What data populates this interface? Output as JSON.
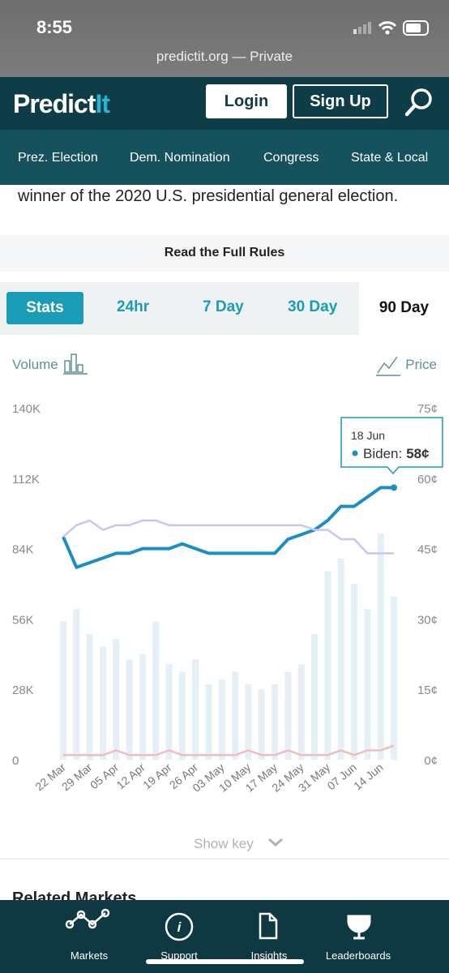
{
  "status_bar": {
    "time": "8:55",
    "url": "predictit.org — Private"
  },
  "header": {
    "logo_main": "Predict",
    "logo_accent": "It",
    "login": "Login",
    "signup": "Sign Up"
  },
  "nav": [
    "Prez. Election",
    "Dem. Nomination",
    "Congress",
    "State & Local"
  ],
  "content": {
    "rules_text": "winner of the 2020 U.S. presidential general election.",
    "rules_link": "Read the Full Rules"
  },
  "tabs": [
    "Stats",
    "24hr",
    "7 Day",
    "30 Day",
    "90 Day"
  ],
  "chart_data": {
    "type": "line",
    "left_label": "Volume",
    "right_label": "Price",
    "categories": [
      "22 Mar",
      null,
      "29 Mar",
      null,
      "05 Apr",
      null,
      "12 Apr",
      null,
      "19 Apr",
      null,
      "26 Apr",
      null,
      "03 May",
      null,
      "10 May",
      null,
      "17 May",
      null,
      "24 May",
      null,
      "31 May",
      null,
      "07 Jun",
      null,
      "14 Jun",
      null
    ],
    "ylim": [
      0,
      140000
    ],
    "yticks": [
      0,
      {
        "value": 28000,
        "label": "28K"
      },
      {
        "value": 56000,
        "label": "56K"
      },
      {
        "value": 84000,
        "label": "84K"
      },
      {
        "value": 112000,
        "label": "112K"
      },
      {
        "value": 140000,
        "label": "140K"
      }
    ],
    "y2lim": [
      0,
      75
    ],
    "y2ticks": [
      {
        "value": 0,
        "label": "0¢"
      },
      {
        "value": 15,
        "label": "15¢"
      },
      {
        "value": 30,
        "label": "30¢"
      },
      {
        "value": 45,
        "label": "45¢"
      },
      {
        "value": 60,
        "label": "60¢"
      },
      {
        "value": 75,
        "label": "75¢"
      }
    ],
    "series": [
      {
        "type": "bar",
        "color": "#e4f0f6",
        "values": [
          55000,
          60000,
          50000,
          45000,
          48000,
          40000,
          42000,
          55000,
          38000,
          35000,
          40000,
          30000,
          32000,
          35000,
          30000,
          28000,
          30000,
          35000,
          38000,
          50000,
          75000,
          80000,
          70000,
          60000,
          90000,
          65000
        ]
      },
      {
        "name": "Biden",
        "color": "#1b8ec4",
        "axis": "y2",
        "values": [
          47.5,
          41,
          42,
          43,
          44,
          44,
          45,
          45,
          45,
          46,
          45,
          44,
          44,
          44,
          44,
          44,
          44,
          47,
          48,
          49,
          51,
          54,
          54,
          56,
          58,
          58
        ]
      },
      {
        "color": "#cbc4ee",
        "axis": "y2",
        "values": [
          47.5,
          50,
          51,
          49,
          50,
          50,
          51,
          51,
          50,
          50,
          50,
          50,
          50,
          50,
          50,
          50,
          50,
          50,
          50,
          49,
          49,
          47,
          47,
          44,
          44,
          44
        ]
      },
      {
        "color": "#f0bcbc",
        "axis": "y2",
        "values": [
          1,
          1,
          1,
          1,
          2,
          1,
          1,
          1,
          2,
          1,
          1,
          1,
          1,
          1,
          2,
          1,
          1,
          2,
          1,
          1,
          1,
          2,
          1,
          2,
          2,
          3
        ]
      }
    ],
    "tooltip": {
      "date": "18 Jun",
      "label": "Biden:",
      "value": 58,
      "value_label": "58¢"
    },
    "show_key": "Show key"
  },
  "related": "Related Markets",
  "bottom_nav": [
    "Markets",
    "Support",
    "Insights",
    "Leaderboards"
  ]
}
